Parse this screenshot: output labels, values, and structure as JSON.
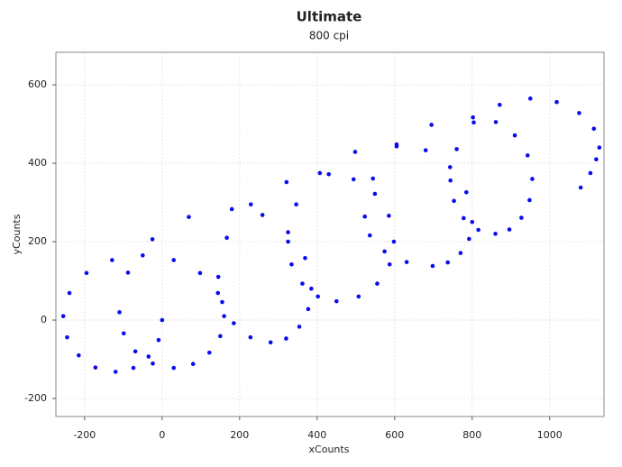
{
  "chart_data": {
    "type": "scatter",
    "title": "Ultimate",
    "subtitle": "800 cpi",
    "x_label": "xCounts",
    "y_label": "yCounts",
    "x": [
      0,
      -9,
      -35,
      -74,
      -120,
      -172,
      -215,
      -245,
      -255,
      -239,
      -195,
      -129,
      -50,
      30,
      98,
      144,
      160,
      150,
      122,
      80,
      30,
      -24,
      -69,
      -99,
      -110,
      -88,
      -25,
      69,
      180,
      259,
      325,
      369,
      385,
      377,
      354,
      320,
      280,
      228,
      185,
      155,
      145,
      167,
      229,
      321,
      430,
      494,
      549,
      585,
      598,
      587,
      555,
      507,
      450,
      402,
      362,
      334,
      325,
      346,
      407,
      498,
      605,
      680,
      743,
      785,
      800,
      792,
      770,
      737,
      698,
      631,
      574,
      536,
      523,
      544,
      605,
      695,
      802,
      861,
      910,
      943,
      955,
      948,
      927,
      896,
      860,
      816,
      778,
      753,
      744,
      760,
      804,
      871,
      950,
      1018,
      1076,
      1114,
      1128,
      1120,
      1105,
      1080
    ],
    "values": [
      0,
      -51,
      -93,
      -122,
      -132,
      -121,
      -90,
      -44,
      10,
      69,
      120,
      153,
      165,
      153,
      120,
      69,
      10,
      -41,
      -83,
      -112,
      -122,
      -111,
      -80,
      -34,
      20,
      121,
      206,
      263,
      283,
      268,
      224,
      158,
      80,
      28,
      -17,
      -47,
      -57,
      -44,
      -8,
      46,
      110,
      210,
      295,
      352,
      372,
      359,
      322,
      266,
      200,
      142,
      93,
      60,
      48,
      60,
      93,
      142,
      200,
      295,
      375,
      429,
      448,
      433,
      390,
      326,
      250,
      207,
      171,
      147,
      138,
      148,
      175,
      216,
      264,
      361,
      443,
      498,
      517,
      505,
      471,
      420,
      360,
      306,
      261,
      231,
      220,
      230,
      260,
      304,
      356,
      436,
      504,
      549,
      565,
      556,
      528,
      488,
      440,
      410,
      375,
      338
    ],
    "color": "#0a0aee",
    "xlim": [
      -274,
      1140
    ],
    "xticks": [
      -200,
      0,
      200,
      400,
      600,
      800,
      1000
    ],
    "ylim": [
      -246,
      683
    ],
    "yticks": [
      -200,
      0,
      200,
      400,
      600
    ],
    "grid": true
  }
}
